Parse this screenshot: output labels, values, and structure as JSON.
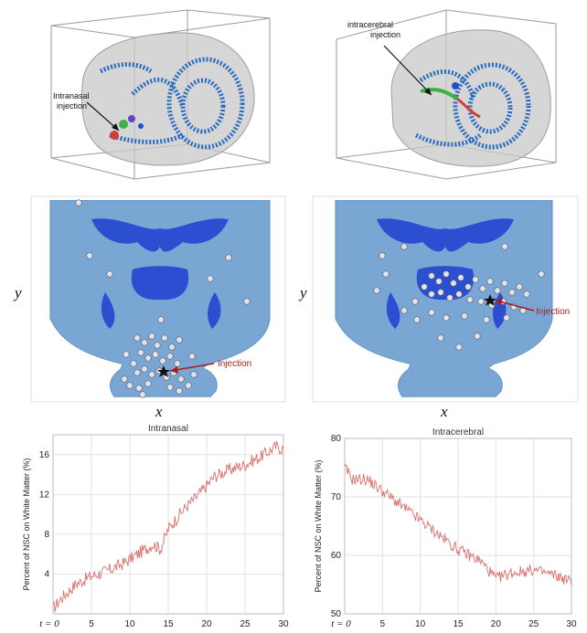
{
  "top_left": {
    "annotation_line1": "Intranasal",
    "annotation_line2": "injection"
  },
  "top_right": {
    "annotation_line1": "intracerebral",
    "annotation_line2": "injection"
  },
  "mid_left": {
    "xlabel": "x",
    "ylabel": "y",
    "injection_label": "Injection"
  },
  "mid_right": {
    "xlabel": "x",
    "ylabel": "y",
    "injection_label": "Injection"
  },
  "colors": {
    "brain": "#7aa6d4",
    "white_matter": "#1f3fd0",
    "nsc": "#e0e4ea",
    "line": "#d9706e",
    "arrow": "#a81f1f"
  },
  "chart_data": [
    {
      "type": "line",
      "title": "Intranasal",
      "xlabel": "",
      "ylabel": "Percent of NSC on White Matter (%)",
      "xlim": [
        0,
        30
      ],
      "ylim": [
        0,
        18
      ],
      "x_first_tick_label": "t = 0",
      "x_ticks": [
        0,
        5,
        10,
        15,
        20,
        25,
        30
      ],
      "y_ticks": [
        4,
        8,
        12,
        16
      ],
      "anchors_x": [
        0,
        1,
        3,
        5,
        7,
        9,
        11,
        13,
        14,
        15,
        17,
        19,
        21,
        23,
        25,
        27,
        29,
        30
      ],
      "anchors_y": [
        0.5,
        1.5,
        3.0,
        3.8,
        4.3,
        5.0,
        6.0,
        7.0,
        6.5,
        8.5,
        10.5,
        12.0,
        13.8,
        14.5,
        15.0,
        15.8,
        16.8,
        16.6
      ],
      "noise": 0.65
    },
    {
      "type": "line",
      "title": "Intracerebral",
      "xlabel": "",
      "ylabel": "Percent of NSC on White Matter (%)",
      "xlim": [
        0,
        30
      ],
      "ylim": [
        50,
        80
      ],
      "x_first_tick_label": "t = 0",
      "x_ticks": [
        0,
        5,
        10,
        15,
        20,
        25,
        30
      ],
      "y_ticks": [
        50,
        60,
        70,
        80
      ],
      "anchors_x": [
        0,
        1,
        3,
        5,
        7,
        10,
        12,
        15,
        18,
        20,
        22,
        25,
        28,
        30
      ],
      "anchors_y": [
        75,
        73,
        73,
        71,
        69,
        66,
        64,
        61,
        59,
        56,
        57,
        57.5,
        56.5,
        55.5
      ],
      "noise": 1.0
    }
  ]
}
